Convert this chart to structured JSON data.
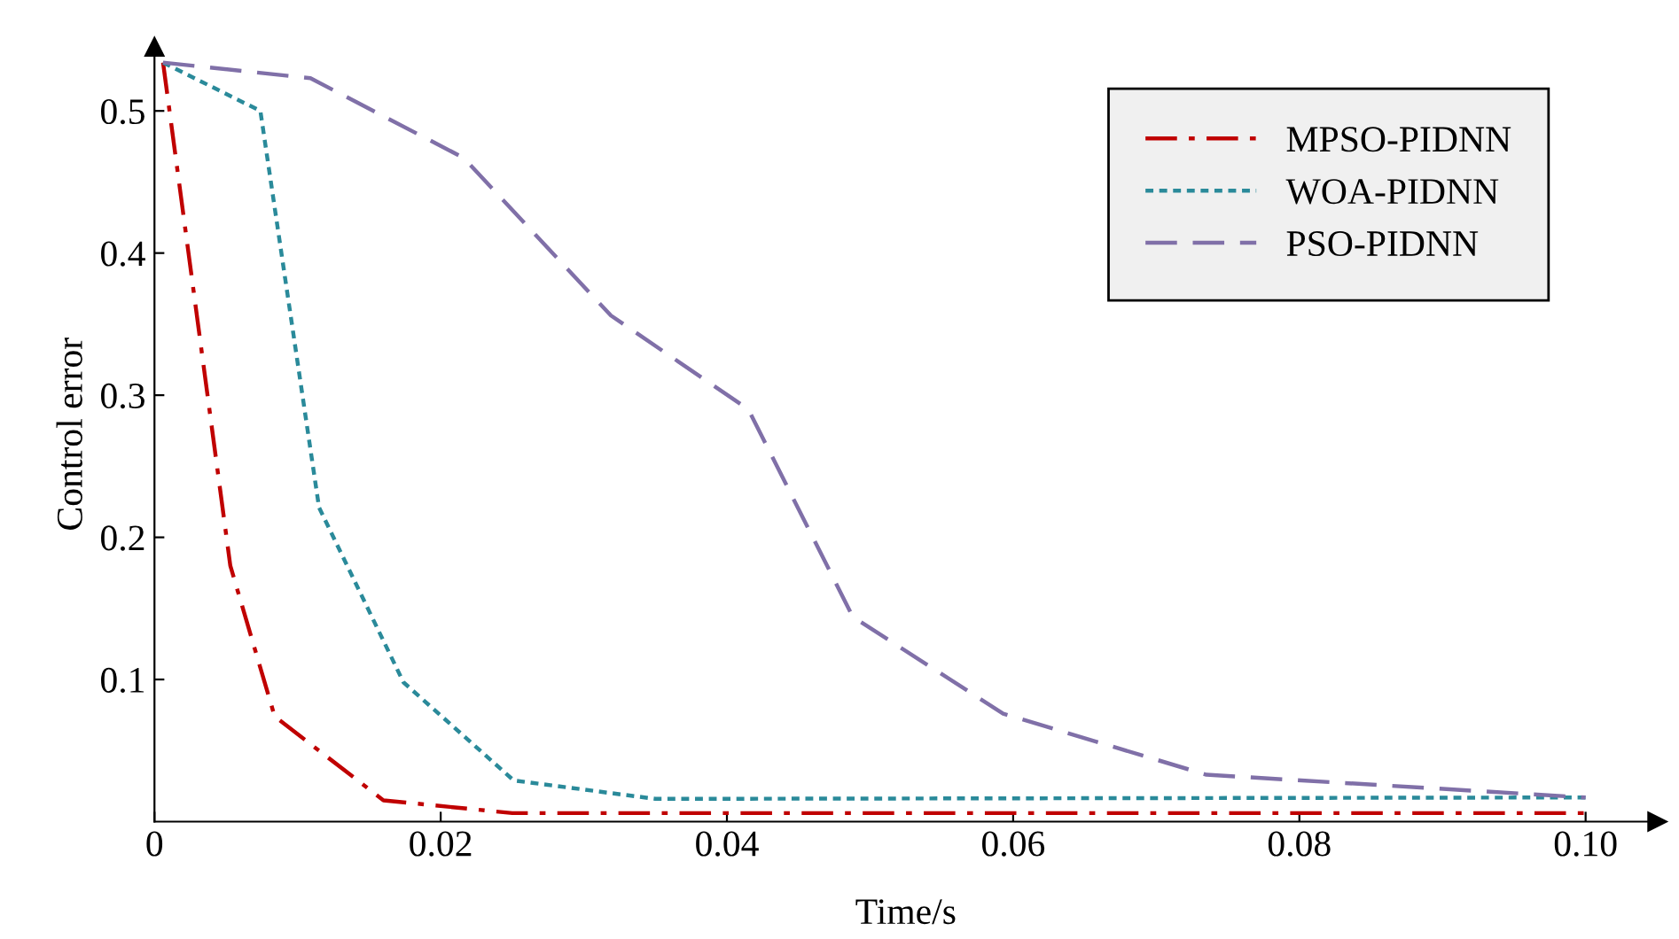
{
  "chart_data": {
    "type": "line",
    "xlabel": "Time/s",
    "ylabel": "Control error",
    "xlim": [
      0,
      0.105
    ],
    "ylim": [
      0,
      0.545
    ],
    "xticks": [
      0,
      0.02,
      0.04,
      0.06,
      0.08,
      {
        "value": 0.1,
        "label": "0.10"
      }
    ],
    "yticks": [
      0.1,
      0.2,
      0.3,
      0.4,
      0.5
    ],
    "legend": "top right",
    "grid": false,
    "marker": "none",
    "series": [
      {
        "name": "MPSO-PIDNN",
        "color": "#c00000",
        "line_style": "dashdot",
        "x": [
          0.0006,
          0.0053,
          0.0084,
          0.016,
          0.025,
          0.1
        ],
        "values": [
          0.534,
          0.18,
          0.074,
          0.015,
          0.006,
          0.006
        ]
      },
      {
        "name": "WOA-PIDNN",
        "color": "#2a8a9a",
        "line_style": "dotted",
        "x": [
          0.0006,
          0.0074,
          0.0115,
          0.0174,
          0.0251,
          0.035,
          0.1
        ],
        "values": [
          0.534,
          0.5,
          0.221,
          0.098,
          0.029,
          0.016,
          0.017
        ]
      },
      {
        "name": "PSO-PIDNN",
        "color": "#8070a8",
        "line_style": "dashed",
        "x": [
          0.0006,
          0.0109,
          0.0216,
          0.0319,
          0.0415,
          0.0488,
          0.0593,
          0.0735,
          0.1
        ],
        "values": [
          0.534,
          0.523,
          0.467,
          0.356,
          0.29,
          0.144,
          0.076,
          0.033,
          0.017
        ]
      }
    ]
  }
}
